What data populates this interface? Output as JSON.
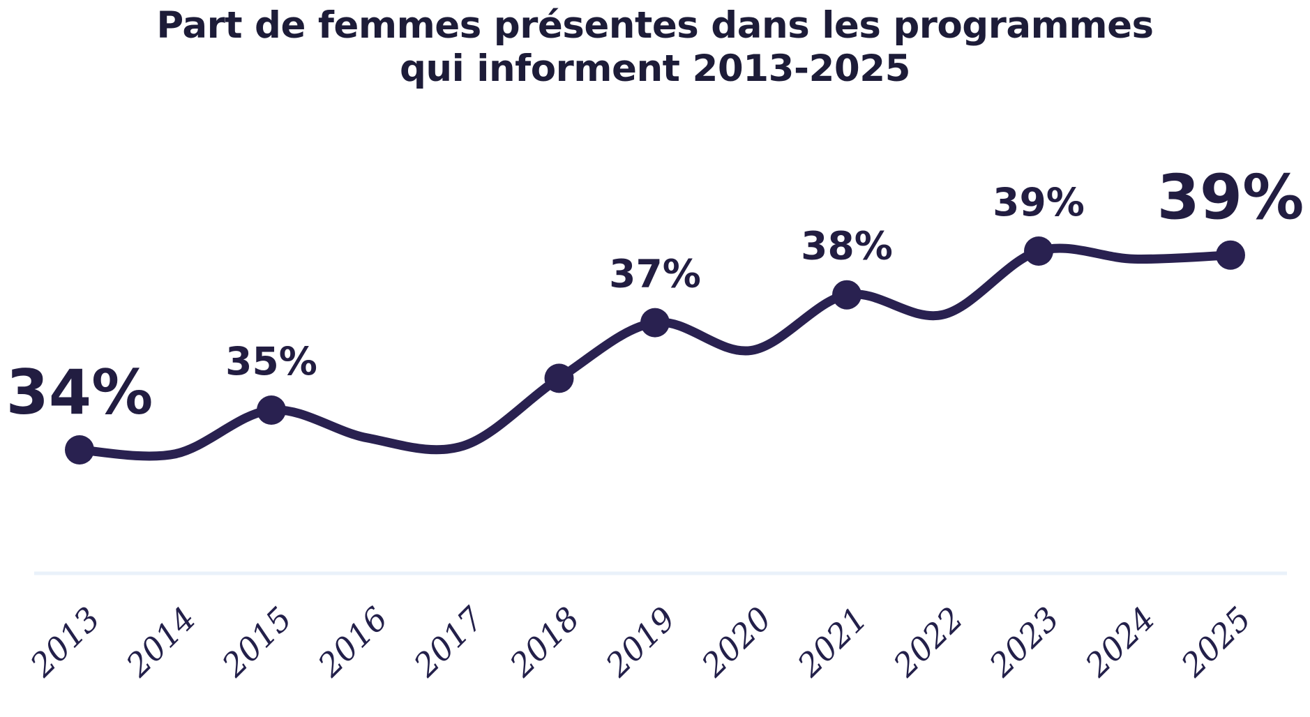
{
  "chart_data": {
    "type": "line",
    "title": "Part de femmes présentes dans les programmes qui informent 2013-2025",
    "title_line1": "Part de femmes présentes dans les programmes",
    "title_line2": "qui informent 2013-2025",
    "xlabel": "",
    "ylabel": "",
    "x": [
      "2013",
      "2014",
      "2015",
      "2016",
      "2017",
      "2018",
      "2019",
      "2020",
      "2021",
      "2022",
      "2023",
      "2024",
      "2025"
    ],
    "series": [
      {
        "name": "Part de femmes",
        "values": [
          34,
          33.9,
          35,
          34.3,
          34.1,
          35.8,
          37.2,
          36.5,
          37.9,
          37.4,
          39,
          38.8,
          38.9
        ]
      }
    ],
    "marker_years": [
      "2013",
      "2015",
      "2018",
      "2019",
      "2021",
      "2023",
      "2025"
    ],
    "point_labels": [
      {
        "x": "2013",
        "text": "34%",
        "emphasis": "large"
      },
      {
        "x": "2015",
        "text": "35%",
        "emphasis": "normal"
      },
      {
        "x": "2019",
        "text": "37%",
        "emphasis": "normal"
      },
      {
        "x": "2021",
        "text": "38%",
        "emphasis": "normal"
      },
      {
        "x": "2023",
        "text": "39%",
        "emphasis": "normal"
      },
      {
        "x": "2025",
        "text": "39%",
        "emphasis": "large"
      }
    ],
    "ylim_est": [
      30.9,
      41.5
    ],
    "grid": false,
    "legend": "none",
    "x_tick_rotation_deg": -45,
    "colors": {
      "line": "#292150",
      "dot": "#292150",
      "title": "#1d1c38",
      "value_label": "#221d41",
      "tick_label": "#23204a",
      "axis_line": "#e9f1fa",
      "background": "#ffffff"
    }
  }
}
